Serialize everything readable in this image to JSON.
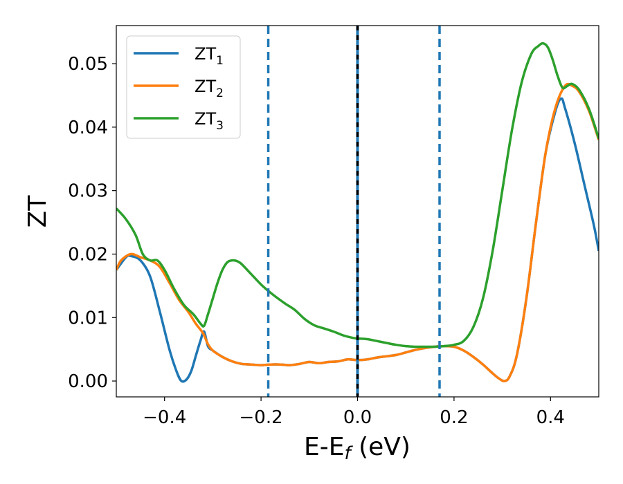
{
  "chart_data": {
    "type": "line",
    "title": "",
    "xlabel": "E-E",
    "xlabel_sub": "f",
    "xlabel_unit": " (eV)",
    "ylabel": "ZT",
    "xlim": [
      -0.5,
      0.5
    ],
    "ylim": [
      -0.0025,
      0.056
    ],
    "grid": false,
    "legend_position": "top-left",
    "x_ticks": [
      {
        "value": -0.4,
        "label": "−0.4"
      },
      {
        "value": -0.2,
        "label": "−0.2"
      },
      {
        "value": 0.0,
        "label": "0.0"
      },
      {
        "value": 0.2,
        "label": "0.2"
      },
      {
        "value": 0.4,
        "label": "0.4"
      }
    ],
    "y_ticks": [
      {
        "value": 0.0,
        "label": "0.00"
      },
      {
        "value": 0.01,
        "label": "0.01"
      },
      {
        "value": 0.02,
        "label": "0.02"
      },
      {
        "value": 0.03,
        "label": "0.03"
      },
      {
        "value": 0.04,
        "label": "0.04"
      },
      {
        "value": 0.05,
        "label": "0.05"
      }
    ],
    "series": [
      {
        "name": "ZT",
        "name_sub": "1",
        "color": "#1f77b4",
        "points": [
          [
            -0.5,
            0.0175
          ],
          [
            -0.48,
            0.0195
          ],
          [
            -0.47,
            0.0197
          ],
          [
            -0.45,
            0.019
          ],
          [
            -0.43,
            0.0165
          ],
          [
            -0.41,
            0.011
          ],
          [
            -0.39,
            0.005
          ],
          [
            -0.375,
            0.0015
          ],
          [
            -0.365,
            0.0
          ],
          [
            -0.355,
            0.0002
          ],
          [
            -0.345,
            0.0015
          ],
          [
            -0.335,
            0.004
          ],
          [
            -0.325,
            0.0065
          ],
          [
            -0.318,
            0.0078
          ],
          [
            -0.31,
            0.0055
          ],
          [
            -0.3,
            0.0048
          ],
          [
            -0.28,
            0.0038
          ],
          [
            -0.26,
            0.0031
          ],
          [
            -0.24,
            0.0027
          ],
          [
            -0.22,
            0.0026
          ],
          [
            -0.2,
            0.0025
          ],
          [
            -0.18,
            0.0026
          ],
          [
            -0.16,
            0.0026
          ],
          [
            -0.14,
            0.0025
          ],
          [
            -0.12,
            0.0027
          ],
          [
            -0.1,
            0.003
          ],
          [
            -0.08,
            0.0028
          ],
          [
            -0.06,
            0.003
          ],
          [
            -0.04,
            0.0031
          ],
          [
            -0.02,
            0.0034
          ],
          [
            0.0,
            0.0033
          ],
          [
            0.02,
            0.0034
          ],
          [
            0.04,
            0.0037
          ],
          [
            0.06,
            0.0039
          ],
          [
            0.08,
            0.0041
          ],
          [
            0.1,
            0.0045
          ],
          [
            0.12,
            0.0049
          ],
          [
            0.14,
            0.0052
          ],
          [
            0.16,
            0.0054
          ],
          [
            0.18,
            0.0055
          ],
          [
            0.2,
            0.0054
          ],
          [
            0.22,
            0.0048
          ],
          [
            0.24,
            0.0038
          ],
          [
            0.26,
            0.0026
          ],
          [
            0.28,
            0.0012
          ],
          [
            0.295,
            0.0003
          ],
          [
            0.305,
            0.0
          ],
          [
            0.315,
            0.0007
          ],
          [
            0.33,
            0.004
          ],
          [
            0.35,
            0.013
          ],
          [
            0.37,
            0.025
          ],
          [
            0.39,
            0.036
          ],
          [
            0.41,
            0.0425
          ],
          [
            0.422,
            0.0445
          ],
          [
            0.43,
            0.043
          ],
          [
            0.45,
            0.0375
          ],
          [
            0.47,
            0.031
          ],
          [
            0.49,
            0.0245
          ],
          [
            0.5,
            0.0205
          ]
        ]
      },
      {
        "name": "ZT",
        "name_sub": "2",
        "color": "#ff7f0e",
        "points": [
          [
            -0.5,
            0.0175
          ],
          [
            -0.49,
            0.019
          ],
          [
            -0.47,
            0.02
          ],
          [
            -0.45,
            0.0195
          ],
          [
            -0.43,
            0.019
          ],
          [
            -0.41,
            0.018
          ],
          [
            -0.39,
            0.0155
          ],
          [
            -0.37,
            0.0128
          ],
          [
            -0.35,
            0.0108
          ],
          [
            -0.335,
            0.009
          ],
          [
            -0.32,
            0.0075
          ],
          [
            -0.31,
            0.0058
          ],
          [
            -0.3,
            0.0048
          ],
          [
            -0.28,
            0.0038
          ],
          [
            -0.26,
            0.0031
          ],
          [
            -0.24,
            0.0027
          ],
          [
            -0.22,
            0.0026
          ],
          [
            -0.2,
            0.0025
          ],
          [
            -0.18,
            0.0026
          ],
          [
            -0.16,
            0.0026
          ],
          [
            -0.14,
            0.0025
          ],
          [
            -0.12,
            0.0027
          ],
          [
            -0.1,
            0.003
          ],
          [
            -0.08,
            0.0028
          ],
          [
            -0.06,
            0.003
          ],
          [
            -0.04,
            0.0031
          ],
          [
            -0.02,
            0.0034
          ],
          [
            0.0,
            0.0033
          ],
          [
            0.02,
            0.0034
          ],
          [
            0.04,
            0.0037
          ],
          [
            0.06,
            0.0039
          ],
          [
            0.08,
            0.0041
          ],
          [
            0.1,
            0.0045
          ],
          [
            0.12,
            0.0049
          ],
          [
            0.14,
            0.0052
          ],
          [
            0.16,
            0.0054
          ],
          [
            0.18,
            0.0055
          ],
          [
            0.2,
            0.0054
          ],
          [
            0.22,
            0.0048
          ],
          [
            0.24,
            0.0038
          ],
          [
            0.26,
            0.0026
          ],
          [
            0.28,
            0.0012
          ],
          [
            0.295,
            0.0003
          ],
          [
            0.305,
            0.0
          ],
          [
            0.315,
            0.0007
          ],
          [
            0.33,
            0.004
          ],
          [
            0.35,
            0.013
          ],
          [
            0.37,
            0.025
          ],
          [
            0.39,
            0.036
          ],
          [
            0.41,
            0.043
          ],
          [
            0.43,
            0.0465
          ],
          [
            0.445,
            0.0465
          ],
          [
            0.46,
            0.0455
          ],
          [
            0.48,
            0.0425
          ],
          [
            0.5,
            0.038
          ]
        ]
      },
      {
        "name": "ZT",
        "name_sub": "3",
        "color": "#2ca02c",
        "points": [
          [
            -0.5,
            0.0272
          ],
          [
            -0.48,
            0.0255
          ],
          [
            -0.46,
            0.023
          ],
          [
            -0.445,
            0.02
          ],
          [
            -0.43,
            0.019
          ],
          [
            -0.415,
            0.019
          ],
          [
            -0.4,
            0.0175
          ],
          [
            -0.38,
            0.0145
          ],
          [
            -0.36,
            0.012
          ],
          [
            -0.34,
            0.0105
          ],
          [
            -0.325,
            0.009
          ],
          [
            -0.318,
            0.0087
          ],
          [
            -0.31,
            0.0105
          ],
          [
            -0.3,
            0.013
          ],
          [
            -0.29,
            0.0155
          ],
          [
            -0.28,
            0.0175
          ],
          [
            -0.27,
            0.0187
          ],
          [
            -0.26,
            0.019
          ],
          [
            -0.25,
            0.0189
          ],
          [
            -0.24,
            0.0184
          ],
          [
            -0.22,
            0.0168
          ],
          [
            -0.2,
            0.0152
          ],
          [
            -0.185,
            0.0142
          ],
          [
            -0.17,
            0.0133
          ],
          [
            -0.15,
            0.0122
          ],
          [
            -0.13,
            0.0112
          ],
          [
            -0.11,
            0.0098
          ],
          [
            -0.09,
            0.0088
          ],
          [
            -0.07,
            0.0083
          ],
          [
            -0.05,
            0.0078
          ],
          [
            -0.03,
            0.0072
          ],
          [
            -0.01,
            0.0068
          ],
          [
            0.0,
            0.0067
          ],
          [
            0.02,
            0.0066
          ],
          [
            0.04,
            0.0063
          ],
          [
            0.06,
            0.006
          ],
          [
            0.08,
            0.0057
          ],
          [
            0.1,
            0.0055
          ],
          [
            0.12,
            0.0054
          ],
          [
            0.14,
            0.0054
          ],
          [
            0.16,
            0.0054
          ],
          [
            0.18,
            0.0055
          ],
          [
            0.2,
            0.0057
          ],
          [
            0.22,
            0.0063
          ],
          [
            0.24,
            0.0085
          ],
          [
            0.26,
            0.013
          ],
          [
            0.28,
            0.0205
          ],
          [
            0.3,
            0.03
          ],
          [
            0.32,
            0.0395
          ],
          [
            0.34,
            0.047
          ],
          [
            0.36,
            0.0515
          ],
          [
            0.375,
            0.0528
          ],
          [
            0.385,
            0.0532
          ],
          [
            0.395,
            0.0525
          ],
          [
            0.405,
            0.0505
          ],
          [
            0.415,
            0.048
          ],
          [
            0.425,
            0.0462
          ],
          [
            0.435,
            0.0465
          ],
          [
            0.445,
            0.0468
          ],
          [
            0.46,
            0.0458
          ],
          [
            0.48,
            0.0428
          ],
          [
            0.5,
            0.0382
          ]
        ]
      }
    ],
    "vertical_lines": [
      {
        "x": -0.185,
        "style": "dashed",
        "color": "#1f77b4"
      },
      {
        "x": 0.17,
        "style": "dashed",
        "color": "#1f77b4"
      },
      {
        "x": 0.0,
        "style": "solid",
        "color": "#1f77b4"
      },
      {
        "x": 0.0,
        "style": "dashed",
        "color": "#000000"
      }
    ]
  }
}
